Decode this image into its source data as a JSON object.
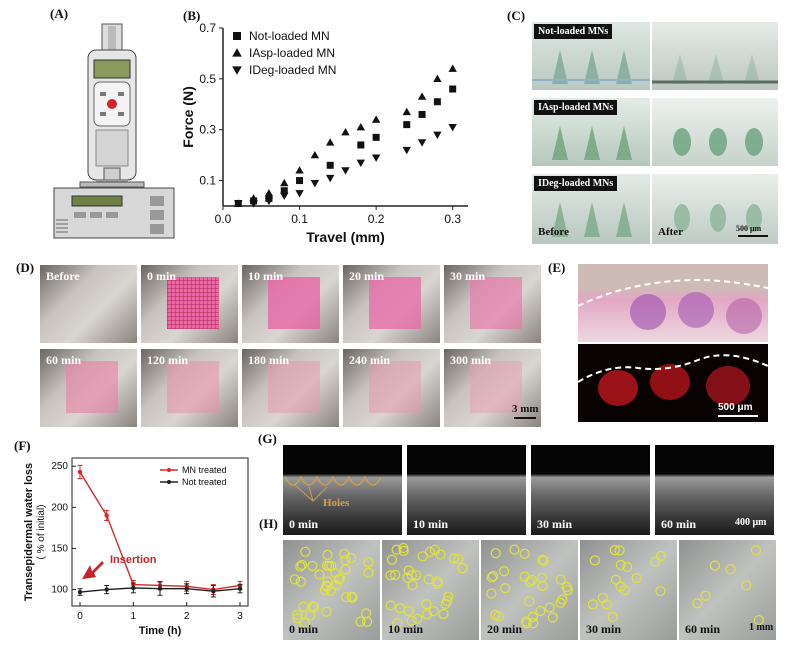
{
  "panels": {
    "A": {
      "label": "(A)"
    },
    "B": {
      "label": "(B)"
    },
    "C": {
      "label": "(C)",
      "headers": [
        "Not-loaded MNs",
        "IAsp-loaded MNs",
        "IDeg-loaded MNs"
      ],
      "before_label": "Before",
      "after_label": "After",
      "scale_bar": "500 μm"
    },
    "D": {
      "label": "(D)",
      "times": [
        "Before",
        "0 min",
        "10 min",
        "20 min",
        "30 min",
        "60 min",
        "120 min",
        "180 min",
        "240 min",
        "300 min"
      ],
      "scale_bar": "3 mm"
    },
    "E": {
      "label": "(E)",
      "scale_bar": "500 μm"
    },
    "F": {
      "label": "(F)"
    },
    "G": {
      "label": "(G)",
      "times": [
        "0 min",
        "10 min",
        "30 min",
        "60 min"
      ],
      "annotation": "Holes",
      "scale_bar": "400 μm"
    },
    "H": {
      "label": "(H)",
      "times": [
        "0 min",
        "10 min",
        "20 min",
        "30 min",
        "60 min"
      ],
      "scale_bar": "1 mm"
    }
  },
  "chart_data": [
    {
      "type": "scatter",
      "panel": "B",
      "xlabel": "Travel (mm)",
      "ylabel": "Force (N)",
      "xlim": [
        0,
        0.32
      ],
      "ylim": [
        0,
        0.7
      ],
      "xticks": [
        "0.0",
        "0.1",
        "0.2",
        "0.3"
      ],
      "yticks": [
        "0.1",
        "0.3",
        "0.5",
        "0.7"
      ],
      "legend_position": "top-left",
      "series": [
        {
          "name": "Not-loaded MN",
          "marker": "square",
          "x": [
            0.02,
            0.04,
            0.06,
            0.08,
            0.1,
            0.14,
            0.18,
            0.2,
            0.24,
            0.26,
            0.28,
            0.3
          ],
          "y": [
            0.01,
            0.02,
            0.03,
            0.06,
            0.1,
            0.16,
            0.24,
            0.27,
            0.32,
            0.36,
            0.41,
            0.46
          ]
        },
        {
          "name": "IAsp-loaded MN",
          "marker": "triangle-up",
          "x": [
            0.02,
            0.04,
            0.06,
            0.08,
            0.1,
            0.12,
            0.14,
            0.16,
            0.18,
            0.2,
            0.24,
            0.26,
            0.28,
            0.3
          ],
          "y": [
            0.01,
            0.03,
            0.05,
            0.09,
            0.14,
            0.2,
            0.25,
            0.29,
            0.31,
            0.34,
            0.37,
            0.43,
            0.5,
            0.54
          ]
        },
        {
          "name": "IDeg-loaded MN",
          "marker": "triangle-down",
          "x": [
            0.02,
            0.04,
            0.06,
            0.08,
            0.1,
            0.12,
            0.14,
            0.16,
            0.18,
            0.2,
            0.24,
            0.26,
            0.28,
            0.3
          ],
          "y": [
            0.01,
            0.01,
            0.02,
            0.04,
            0.05,
            0.09,
            0.11,
            0.14,
            0.17,
            0.19,
            0.22,
            0.25,
            0.28,
            0.31
          ]
        }
      ]
    },
    {
      "type": "line",
      "panel": "F",
      "xlabel": "Time (h)",
      "ylabel": "Transepidermal water loss",
      "ylabel2": "( % of initial)",
      "xlim": [
        0,
        3
      ],
      "ylim": [
        80,
        260
      ],
      "xticks": [
        "0",
        "1",
        "2",
        "3"
      ],
      "yticks": [
        "100",
        "150",
        "200",
        "250"
      ],
      "legend_position": "top-right",
      "annotation": "Insertion",
      "series": [
        {
          "name": "MN treated",
          "color": "#d6272b",
          "x": [
            0,
            0.5,
            1,
            1.5,
            2,
            2.5,
            3
          ],
          "y": [
            243,
            190,
            106,
            105,
            104,
            100,
            105
          ],
          "err": [
            8,
            6,
            5,
            5,
            6,
            6,
            5
          ]
        },
        {
          "name": "Not treated",
          "color": "#222222",
          "x": [
            0,
            0.5,
            1,
            1.5,
            2,
            2.5,
            3
          ],
          "y": [
            97,
            100,
            102,
            101,
            101,
            98,
            101
          ],
          "err": [
            4,
            5,
            6,
            8,
            6,
            7,
            5
          ]
        }
      ]
    }
  ]
}
